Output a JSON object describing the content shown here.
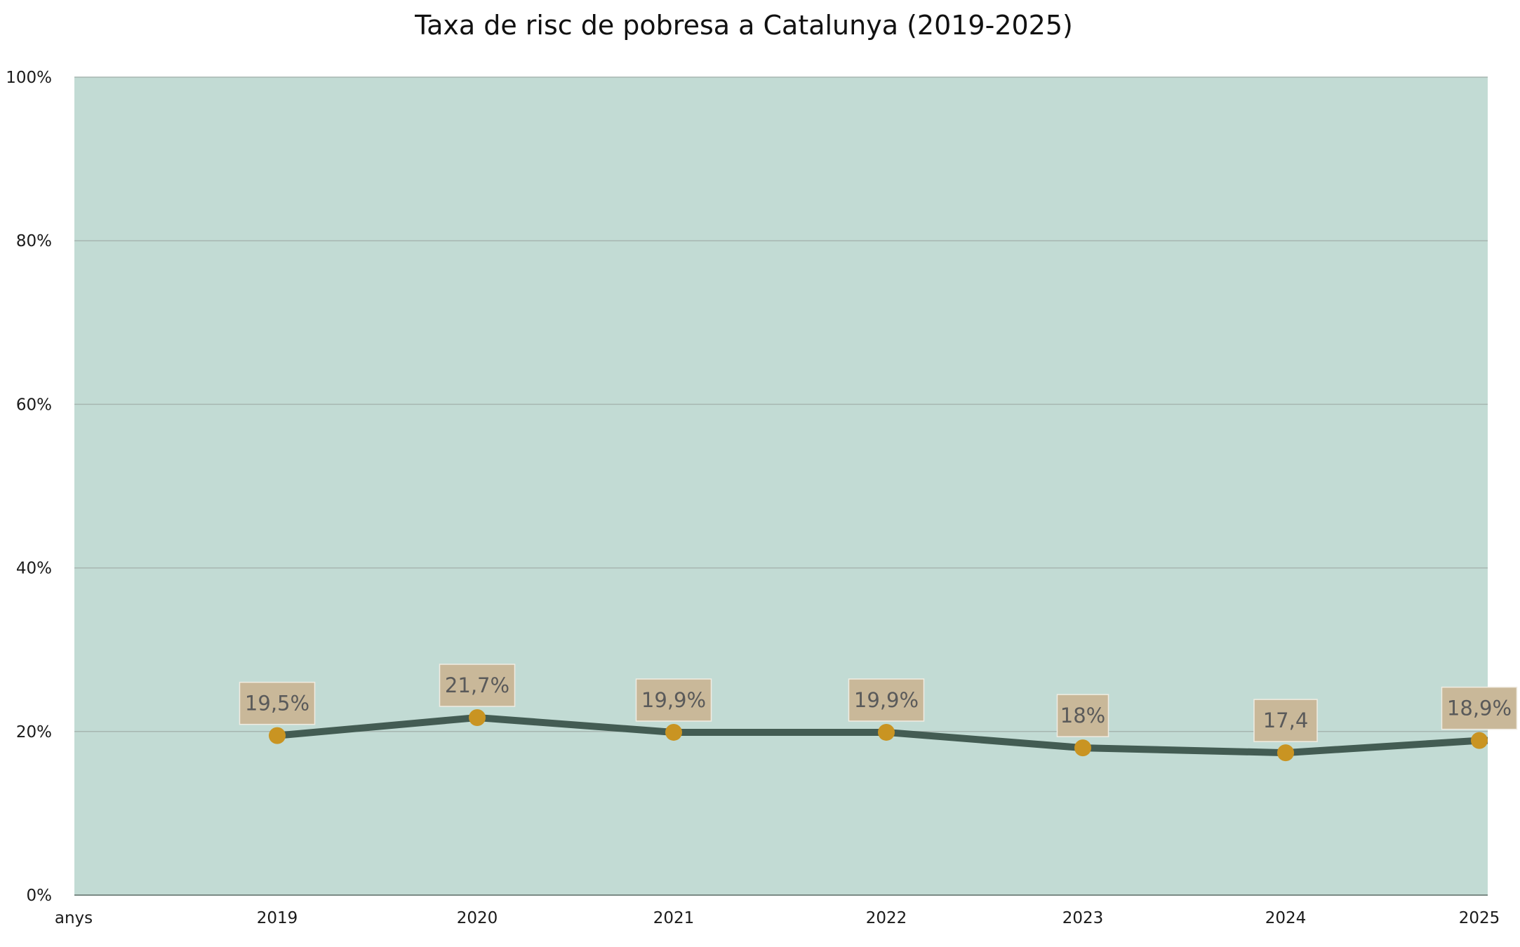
{
  "chart_data": {
    "type": "line",
    "title": "Taxa de risc de pobresa a Catalunya (2019-2025)",
    "xlabel": "anys",
    "ylabel": "",
    "categories": [
      "2019",
      "2020",
      "2021",
      "2022",
      "2023",
      "2024",
      "2025"
    ],
    "series": [
      {
        "values": [
          19.5,
          21.7,
          19.9,
          19.9,
          18.0,
          17.4,
          18.9
        ],
        "data_labels": [
          "19,5%",
          "21,7%",
          "19,9%",
          "19,9%",
          "18%",
          "17,4",
          "18,9%"
        ]
      }
    ],
    "ylim": [
      0,
      100
    ],
    "yticks": [
      0,
      20,
      40,
      60,
      80,
      100
    ],
    "ytick_labels": [
      "0%",
      "20%",
      "40%",
      "60%",
      "80%",
      "100%"
    ],
    "grid": true,
    "legend": "none",
    "colors": {
      "plot_background": "#c2dbd4",
      "line": "#435c53",
      "marker": "#c99422",
      "label_box": "#c9b899",
      "label_box_border": "#f0ece2",
      "label_text": "#5a5a5a",
      "grid": "#a7b6b1",
      "axis": "#7a8a85"
    }
  }
}
